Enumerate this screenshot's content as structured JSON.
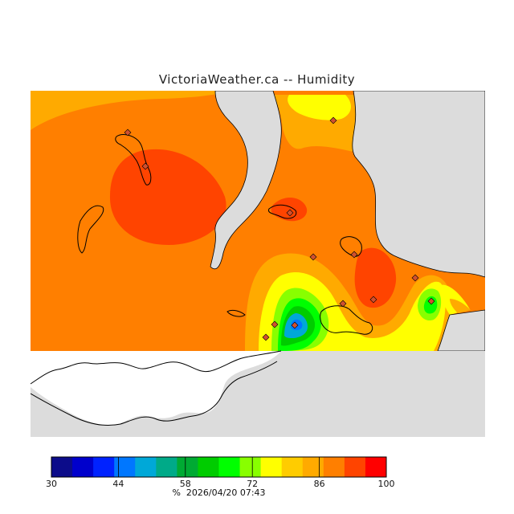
{
  "header": {
    "title": "VictoriaWeather.ca -- Humidity"
  },
  "legend": {
    "unit": "%",
    "timestamp": "2026/04/20 07:43",
    "tick_labels": [
      "30",
      "44",
      "58",
      "72",
      "86",
      "100"
    ],
    "min": 30,
    "max": 100,
    "colors": [
      "#0c0c8a",
      "#0000cc",
      "#0022ff",
      "#0077ff",
      "#00a8d8",
      "#00aa88",
      "#00aa33",
      "#00cc00",
      "#00ff00",
      "#88ff00",
      "#ffff00",
      "#ffcc00",
      "#ffaa00",
      "#ff7f00",
      "#ff4400",
      "#ff0000"
    ]
  },
  "map": {
    "colors": {
      "land_background": "#dcdcdc",
      "no_data": "#ffffff",
      "coast_line": "#000000",
      "station_marker": "#d05030"
    },
    "station_count": 13
  }
}
